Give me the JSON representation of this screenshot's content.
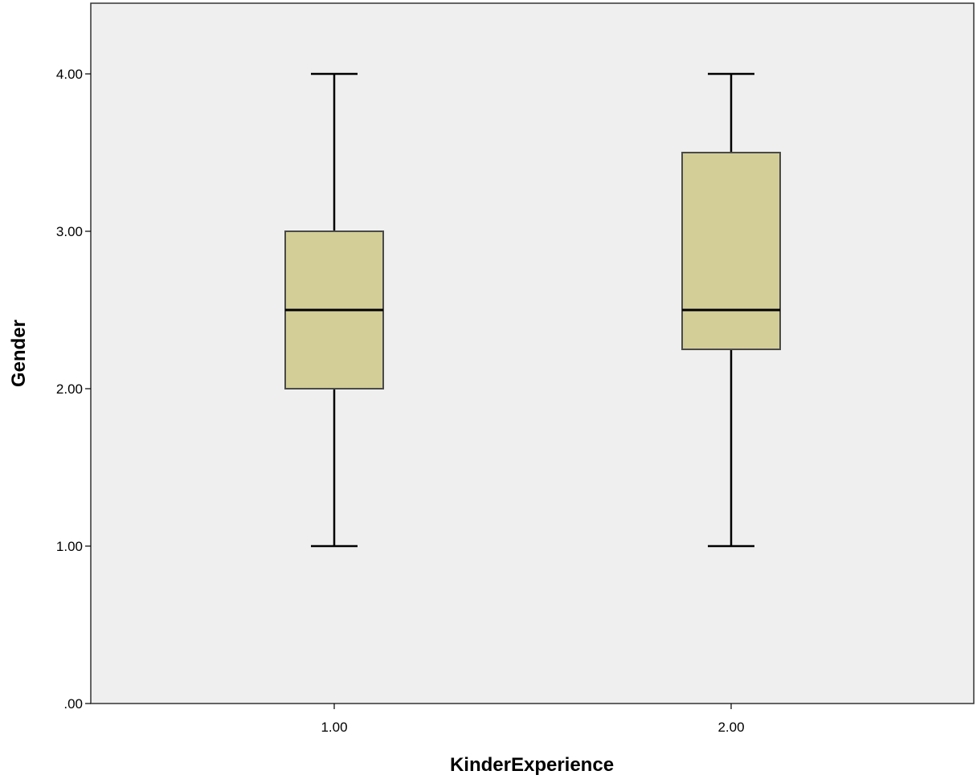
{
  "chart_data": {
    "type": "boxplot",
    "xlabel": "KinderExperience",
    "ylabel": "Gender",
    "ylim": [
      0,
      4.4
    ],
    "yticks": [
      0,
      1,
      2,
      3,
      4
    ],
    "ytick_labels": [
      ".00",
      "1.00",
      "2.00",
      "3.00",
      "4.00"
    ],
    "categories": [
      "1.00",
      "2.00"
    ],
    "boxes": [
      {
        "category": "1.00",
        "min": 1.0,
        "q1": 2.0,
        "median": 2.5,
        "q3": 3.0,
        "max": 4.0
      },
      {
        "category": "2.00",
        "min": 1.0,
        "q1": 2.25,
        "median": 2.5,
        "q3": 3.5,
        "max": 4.0
      }
    ],
    "grid": false,
    "legend": "none",
    "colors": {
      "plot_background": "#efefef",
      "box_fill": "#d3ce97",
      "box_stroke": "#4a4a4a",
      "line": "#000000"
    }
  }
}
